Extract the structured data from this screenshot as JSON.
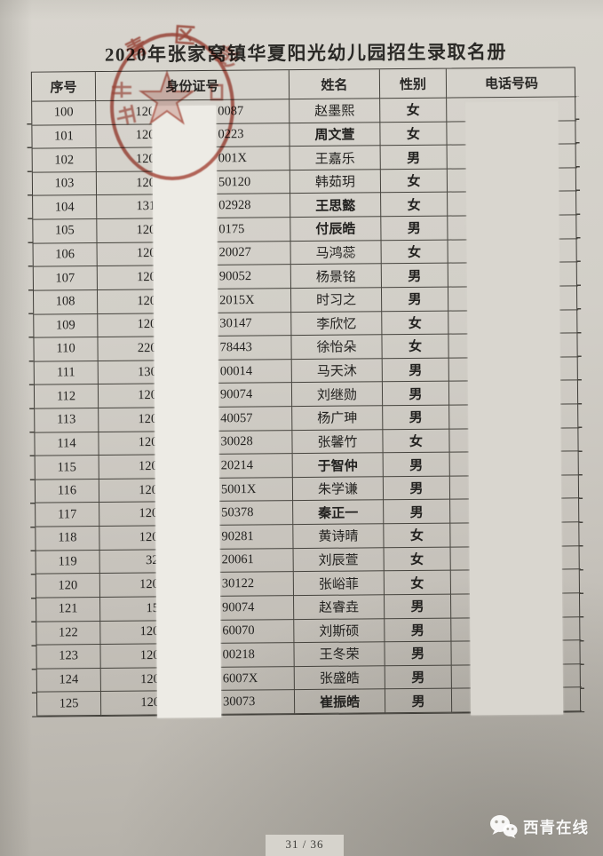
{
  "page": {
    "title": "2020年张家窝镇华夏阳光幼儿园招生录取名册",
    "page_indicator": "31 / 36",
    "watermark_text": "西青在线"
  },
  "stamp": {
    "char_top_left": "青",
    "char_top": "区",
    "char_top_right": "彭",
    "color": "#a93a2b"
  },
  "colors": {
    "paper": "#d2cfc8",
    "line": "#45433d",
    "seal_red": "#a93a2b",
    "id_redaction": "#edebe5",
    "phone_redaction": "#d9d6cf"
  },
  "table": {
    "headers": [
      "序号",
      "身份证号",
      "姓名",
      "性别",
      "电话号码"
    ],
    "rows": [
      {
        "no": "100",
        "id_prefix": "120",
        "id_suffix": "0087",
        "name": "赵墨熙",
        "gender": "女",
        "bold": false
      },
      {
        "no": "101",
        "id_prefix": "120",
        "id_suffix": "0223",
        "name": "周文萱",
        "gender": "女",
        "bold": true
      },
      {
        "no": "102",
        "id_prefix": "120",
        "id_suffix": "001X",
        "name": "王嘉乐",
        "gender": "男",
        "bold": false
      },
      {
        "no": "103",
        "id_prefix": "120",
        "id_suffix": "50120",
        "name": "韩茹玥",
        "gender": "女",
        "bold": false
      },
      {
        "no": "104",
        "id_prefix": "131",
        "id_suffix": "02928",
        "name": "王思懿",
        "gender": "女",
        "bold": true
      },
      {
        "no": "105",
        "id_prefix": "120",
        "id_suffix": "0175",
        "name": "付辰皓",
        "gender": "男",
        "bold": true
      },
      {
        "no": "106",
        "id_prefix": "120",
        "id_suffix": "20027",
        "name": "马鸿蕊",
        "gender": "女",
        "bold": false
      },
      {
        "no": "107",
        "id_prefix": "120",
        "id_suffix": "90052",
        "name": "杨景铭",
        "gender": "男",
        "bold": false
      },
      {
        "no": "108",
        "id_prefix": "120",
        "id_suffix": "2015X",
        "name": "时习之",
        "gender": "男",
        "bold": false
      },
      {
        "no": "109",
        "id_prefix": "120",
        "id_suffix": "30147",
        "name": "李欣忆",
        "gender": "女",
        "bold": false
      },
      {
        "no": "110",
        "id_prefix": "220",
        "id_suffix": "78443",
        "name": "徐怡朵",
        "gender": "女",
        "bold": false
      },
      {
        "no": "111",
        "id_prefix": "130",
        "id_suffix": "00014",
        "name": "马天沐",
        "gender": "男",
        "bold": false
      },
      {
        "no": "112",
        "id_prefix": "120",
        "id_suffix": "90074",
        "name": "刘继勋",
        "gender": "男",
        "bold": false
      },
      {
        "no": "113",
        "id_prefix": "120",
        "id_suffix": "40057",
        "name": "杨广珅",
        "gender": "男",
        "bold": false
      },
      {
        "no": "114",
        "id_prefix": "120",
        "id_suffix": "30028",
        "name": "张馨竹",
        "gender": "女",
        "bold": false
      },
      {
        "no": "115",
        "id_prefix": "120",
        "id_suffix": "20214",
        "name": "于智仲",
        "gender": "男",
        "bold": true
      },
      {
        "no": "116",
        "id_prefix": "120",
        "id_suffix": "5001X",
        "name": "朱学谦",
        "gender": "男",
        "bold": false
      },
      {
        "no": "117",
        "id_prefix": "120",
        "id_suffix": "50378",
        "name": "秦正一",
        "gender": "男",
        "bold": true
      },
      {
        "no": "118",
        "id_prefix": "120",
        "id_suffix": "90281",
        "name": "黄诗晴",
        "gender": "女",
        "bold": false
      },
      {
        "no": "119",
        "id_prefix": "32",
        "id_suffix": "20061",
        "name": "刘辰萱",
        "gender": "女",
        "bold": false
      },
      {
        "no": "120",
        "id_prefix": "120",
        "id_suffix": "30122",
        "name": "张峪菲",
        "gender": "女",
        "bold": false
      },
      {
        "no": "121",
        "id_prefix": "15",
        "id_suffix": "90074",
        "name": "赵睿垚",
        "gender": "男",
        "bold": false
      },
      {
        "no": "122",
        "id_prefix": "120",
        "id_suffix": "60070",
        "name": "刘斯硕",
        "gender": "男",
        "bold": false
      },
      {
        "no": "123",
        "id_prefix": "120",
        "id_suffix": "00218",
        "name": "王冬荣",
        "gender": "男",
        "bold": false
      },
      {
        "no": "124",
        "id_prefix": "120",
        "id_suffix": "6007X",
        "name": "张盛皓",
        "gender": "男",
        "bold": false
      },
      {
        "no": "125",
        "id_prefix": "120",
        "id_suffix": "30073",
        "name": "崔振皓",
        "gender": "男",
        "bold": true
      }
    ]
  }
}
